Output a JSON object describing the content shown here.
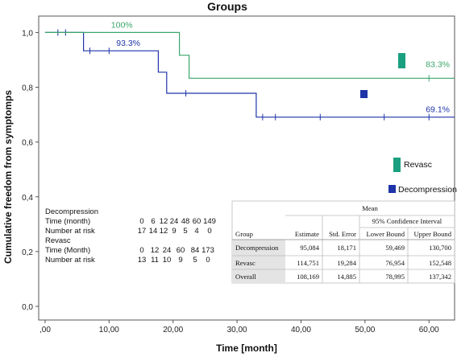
{
  "chart_data": {
    "type": "line",
    "title": "Groups",
    "xlabel": "Time [month]",
    "ylabel": "Cumulative freedom from symptomps",
    "xlim": [
      -1,
      64
    ],
    "ylim": [
      -0.05,
      1.06
    ],
    "x_ticks": [
      ",00",
      "10,00",
      "20,00",
      "30,00",
      "40,00",
      "50,00",
      "60,00"
    ],
    "y_ticks": [
      "0,0",
      "0,2",
      "0,4",
      "0,6",
      "0,8",
      "1,0"
    ],
    "colors": {
      "decompression": "#1f34a8",
      "revasc": "#3aa66b",
      "revasc_marker": "#1aa080"
    },
    "series": [
      {
        "name": "Decompression",
        "color": "#1f34a8",
        "steps": [
          [
            0,
            1.0
          ],
          [
            6,
            1.0
          ],
          [
            6,
            0.933
          ],
          [
            17.7,
            0.933
          ],
          [
            17.7,
            0.855
          ],
          [
            19,
            0.855
          ],
          [
            19,
            0.778
          ],
          [
            33,
            0.778
          ],
          [
            33,
            0.691
          ],
          [
            64,
            0.691
          ]
        ],
        "censored": [
          [
            2,
            1.0
          ],
          [
            3.2,
            1.0
          ],
          [
            7,
            0.933
          ],
          [
            10,
            0.933
          ],
          [
            22,
            0.778
          ],
          [
            34,
            0.691
          ],
          [
            36,
            0.691
          ],
          [
            43,
            0.691
          ],
          [
            53,
            0.691
          ],
          [
            60,
            0.691
          ]
        ],
        "end_label": "69.1%",
        "mid_label": "93.3%"
      },
      {
        "name": "Revasc",
        "color": "#3aa66b",
        "steps": [
          [
            0,
            1.0
          ],
          [
            21,
            1.0
          ],
          [
            21,
            0.917
          ],
          [
            22.5,
            0.917
          ],
          [
            22.5,
            0.833
          ],
          [
            64,
            0.833
          ]
        ],
        "censored": [
          [
            60,
            0.833
          ]
        ],
        "start_label": "100%",
        "end_label": "83.3%"
      }
    ],
    "legend": [
      {
        "name": "Revasc",
        "color": "#1aa080"
      },
      {
        "name": "Decompression",
        "color": "#1f34a8"
      }
    ],
    "risk_table": {
      "decompression_heading": "Decompression",
      "decompression_time_label": "Time (month)",
      "decompression_times": [
        "0",
        "6",
        "12",
        "24",
        "48",
        "60",
        "149"
      ],
      "decompression_risk_label": "Number at risk",
      "decompression_at_risk": [
        "17",
        "14",
        "12",
        "9",
        "5",
        "4",
        "0"
      ],
      "revasc_heading": "Revasc",
      "revasc_time_label": "Time (Month)",
      "revasc_times": [
        "0",
        "12",
        "24",
        "60",
        "84",
        "173"
      ],
      "revasc_risk_label": "Number at risk",
      "revasc_at_risk": [
        "13",
        "11",
        "10",
        "9",
        "5",
        "0"
      ]
    },
    "mean_table": {
      "title": "Mean",
      "ci_header": "95% Confidence Interval",
      "columns": [
        "Group",
        "Estimate",
        "Std. Error",
        "Lower Bound",
        "Upper Bound"
      ],
      "rows": [
        [
          "Decompression",
          "95,084",
          "18,171",
          "59,469",
          "130,700"
        ],
        [
          "Revasc",
          "114,751",
          "19,284",
          "76,954",
          "152,548"
        ],
        [
          "Overall",
          "108,169",
          "14,885",
          "78,995",
          "137,342"
        ]
      ]
    }
  }
}
